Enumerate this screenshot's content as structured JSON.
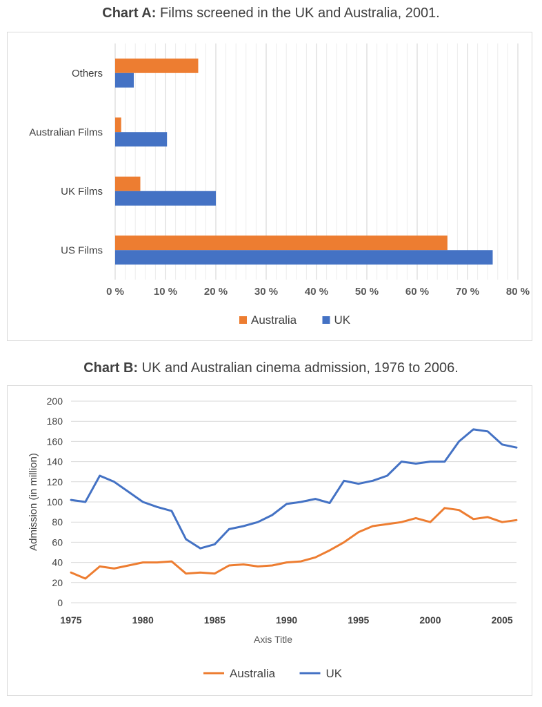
{
  "chart_data": [
    {
      "type": "bar",
      "orientation": "horizontal",
      "title_prefix": "Chart A:",
      "title": "Films screened in the UK and Australia, 2001.",
      "categories": [
        "US Films",
        "UK Films",
        "Australian Films",
        "Others"
      ],
      "series": [
        {
          "name": "Australia",
          "color": "#ed7d31",
          "values": [
            66,
            5,
            1.2,
            16.5
          ]
        },
        {
          "name": "UK",
          "color": "#4472c4",
          "values": [
            75,
            20,
            10.3,
            3.7
          ]
        }
      ],
      "x_ticks": [
        0,
        10,
        20,
        30,
        40,
        50,
        60,
        70,
        80
      ],
      "x_tick_labels": [
        "0 %",
        "10 %",
        "20 %",
        "30 %",
        "40 %",
        "50 %",
        "60 %",
        "70 %",
        "80 %"
      ],
      "xlim": [
        0,
        80
      ],
      "xlabel": "",
      "ylabel": "",
      "grid": true,
      "legend_position": "bottom"
    },
    {
      "type": "line",
      "title_prefix": "Chart B:",
      "title": "UK and Australian cinema admission, 1976 to 2006.",
      "x": [
        1975,
        1976,
        1977,
        1978,
        1979,
        1980,
        1981,
        1982,
        1983,
        1984,
        1985,
        1986,
        1987,
        1988,
        1989,
        1990,
        1991,
        1992,
        1993,
        1994,
        1995,
        1996,
        1997,
        1998,
        1999,
        2000,
        2001,
        2002,
        2003,
        2004,
        2005,
        2006
      ],
      "series": [
        {
          "name": "Australia",
          "color": "#ed7d31",
          "values": [
            30,
            24,
            36,
            34,
            37,
            40,
            40,
            41,
            29,
            30,
            29,
            37,
            38,
            36,
            37,
            40,
            41,
            45,
            52,
            60,
            70,
            76,
            78,
            80,
            84,
            80,
            94,
            92,
            83,
            85,
            80,
            82
          ]
        },
        {
          "name": "UK",
          "color": "#4472c4",
          "values": [
            102,
            100,
            126,
            120,
            110,
            100,
            95,
            91,
            63,
            54,
            58,
            73,
            76,
            80,
            87,
            98,
            100,
            103,
            99,
            121,
            118,
            121,
            126,
            140,
            138,
            140,
            140,
            160,
            172,
            170,
            157,
            154
          ]
        }
      ],
      "x_ticks": [
        1975,
        1980,
        1985,
        1990,
        1995,
        2000,
        2005
      ],
      "y_ticks": [
        0,
        20,
        40,
        60,
        80,
        100,
        120,
        140,
        160,
        180,
        200
      ],
      "xlim": [
        1975,
        2006
      ],
      "ylim": [
        0,
        200
      ],
      "xlabel": "Axis Title",
      "ylabel": "Admission (in million)",
      "grid": true,
      "legend_position": "bottom"
    }
  ]
}
